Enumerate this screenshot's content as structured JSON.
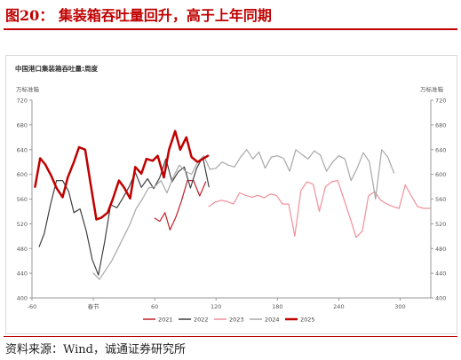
{
  "figure": {
    "title": "图20： 集装箱吞吐量回升，高于上年同期",
    "source": "资料来源：Wind，诚通证券研究所"
  },
  "chart_data": {
    "type": "line",
    "title": "中国港口集装箱吞吐量:周度",
    "ylabel_left": "万标准箱",
    "ylabel_right": "万标准箱",
    "xlim": [
      -60,
      330
    ],
    "ylim": [
      400,
      720
    ],
    "x_ticks": [
      {
        "value": -60,
        "label": "-60"
      },
      {
        "value": 0,
        "label": "春节"
      },
      {
        "value": 60,
        "label": "60"
      },
      {
        "value": 120,
        "label": "120"
      },
      {
        "value": 180,
        "label": "180"
      },
      {
        "value": 240,
        "label": "240"
      },
      {
        "value": 300,
        "label": "300"
      }
    ],
    "y_ticks": [
      400,
      440,
      480,
      520,
      560,
      600,
      640,
      680,
      720
    ],
    "legend_position": "bottom",
    "series": [
      {
        "name": "2021",
        "color": "#c0202a",
        "width": 1.2,
        "x": [
          60,
          65,
          70,
          75,
          81,
          86,
          92,
          98,
          104,
          110
        ],
        "y": [
          529,
          524,
          538,
          510,
          532,
          556,
          590,
          590,
          565,
          588
        ]
      },
      {
        "name": "2022",
        "color": "#404040",
        "width": 1.2,
        "x": [
          -53,
          -48,
          -42,
          -36,
          -30,
          -24,
          -19,
          -13,
          -7,
          -1,
          5,
          11,
          17,
          23,
          29,
          35,
          41,
          47,
          53,
          59,
          65,
          71,
          77,
          83,
          89,
          95,
          101,
          107,
          113
        ],
        "y": [
          483,
          504,
          550,
          590,
          590,
          572,
          538,
          544,
          509,
          462,
          437,
          490,
          551,
          546,
          562,
          580,
          603,
          579,
          593,
          577,
          595,
          625,
          588,
          604,
          612,
          578,
          610,
          628,
          580
        ]
      },
      {
        "name": "2023",
        "color": "#f0909a",
        "width": 1.2,
        "x": [
          113,
          119,
          125,
          131,
          137,
          143,
          149,
          155,
          161,
          167,
          173,
          179,
          185,
          191,
          197,
          203,
          209,
          215,
          221,
          227,
          233,
          239,
          245,
          251,
          257,
          263,
          269,
          275,
          281,
          287,
          293,
          299,
          305,
          311,
          317,
          323,
          329
        ],
        "y": [
          548,
          555,
          558,
          556,
          552,
          570,
          566,
          563,
          566,
          562,
          568,
          566,
          552,
          552,
          500,
          574,
          588,
          584,
          540,
          580,
          588,
          590,
          560,
          530,
          498,
          508,
          565,
          572,
          558,
          552,
          548,
          545,
          583,
          565,
          548,
          545,
          545
        ]
      },
      {
        "name": "2024",
        "color": "#a8a8a8",
        "width": 1.2,
        "x": [
          0,
          6,
          12,
          18,
          24,
          30,
          36,
          42,
          48,
          54,
          60,
          66,
          72,
          78,
          84,
          90,
          96,
          102,
          108,
          114,
          120,
          126,
          132,
          138,
          144,
          150,
          156,
          162,
          168,
          174,
          180,
          186,
          192,
          198,
          204,
          210,
          216,
          222,
          228,
          234,
          240,
          246,
          252,
          258,
          264,
          270,
          276,
          282,
          288,
          294
        ],
        "y": [
          440,
          430,
          445,
          460,
          480,
          500,
          520,
          545,
          560,
          578,
          580,
          590,
          570,
          595,
          615,
          605,
          600,
          620,
          630,
          608,
          610,
          620,
          615,
          612,
          628,
          640,
          625,
          636,
          610,
          628,
          630,
          626,
          605,
          640,
          632,
          625,
          638,
          631,
          605,
          620,
          630,
          625,
          590,
          610,
          635,
          620,
          560,
          640,
          628,
          602
        ]
      },
      {
        "name": "2025",
        "color": "#c00000",
        "width": 2.5,
        "x": [
          -57,
          -52,
          -47,
          -41,
          -36,
          -30,
          -25,
          -19,
          -14,
          -8,
          -3,
          3,
          8,
          14,
          19,
          25,
          30,
          36,
          41,
          47,
          52,
          58,
          63,
          69,
          74,
          80,
          85,
          91,
          96,
          102,
          107,
          112
        ],
        "y": [
          580,
          626,
          616,
          597,
          578,
          563,
          595,
          620,
          644,
          640,
          588,
          527,
          530,
          538,
          560,
          590,
          579,
          561,
          612,
          601,
          625,
          622,
          630,
          595,
          640,
          670,
          640,
          660,
          628,
          620,
          625,
          630
        ]
      }
    ]
  }
}
